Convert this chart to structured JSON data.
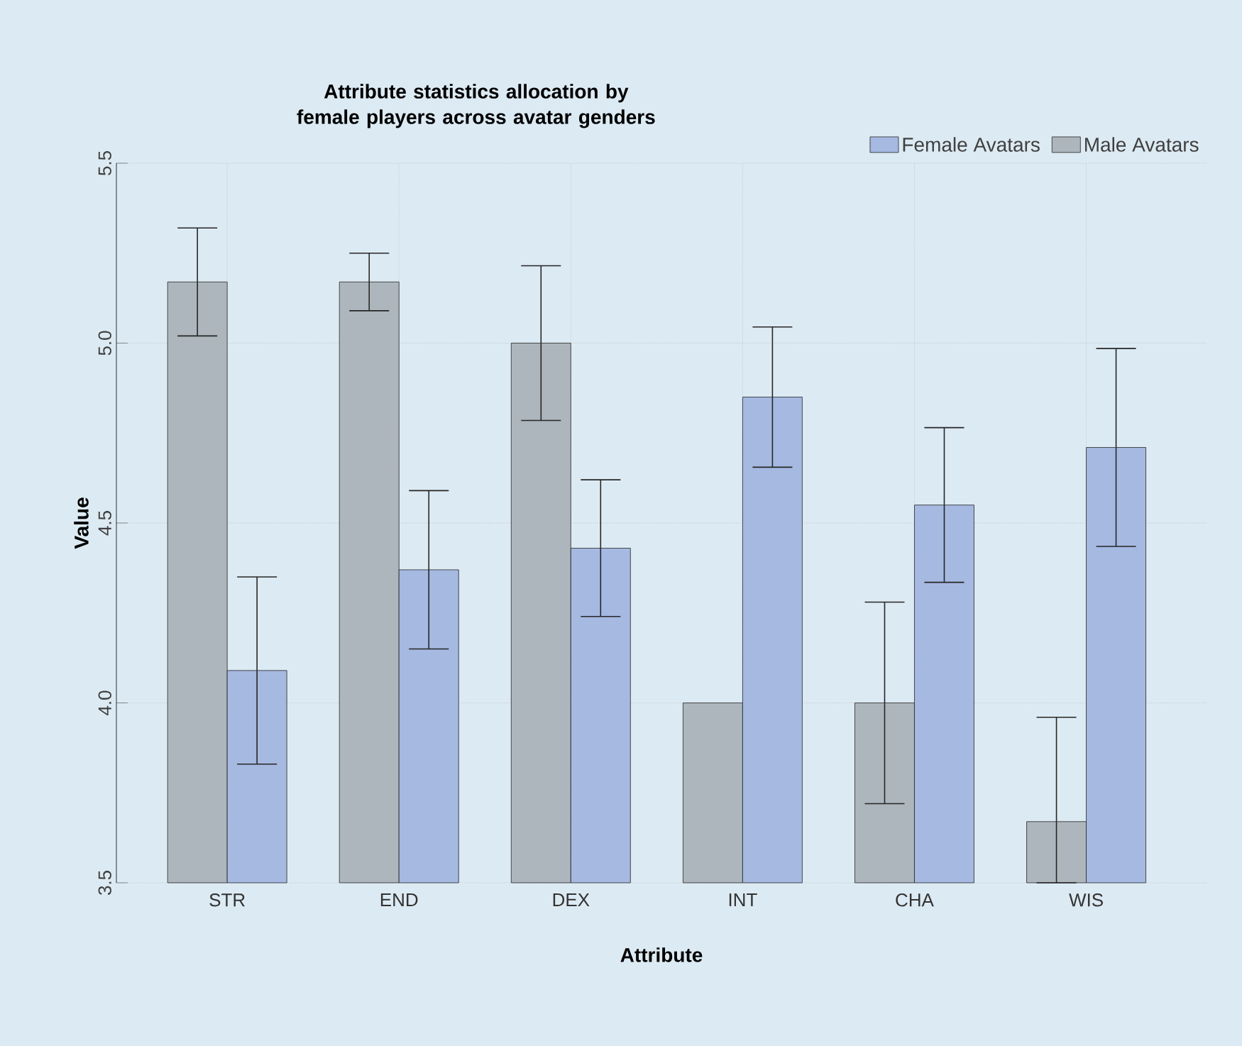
{
  "chart_data": {
    "type": "bar",
    "title": "Attribute statistics allocation by female players across avatar genders",
    "xlabel": "Attribute",
    "ylabel": "Value",
    "categories": [
      "STR",
      "END",
      "DEX",
      "INT",
      "CHA",
      "WIS"
    ],
    "series": [
      {
        "name": "Male Avatars",
        "color": "#adb6bc",
        "values": [
          5.17,
          5.17,
          5.0,
          4.0,
          4.0,
          3.67
        ],
        "errors": [
          0.15,
          0.08,
          0.215,
          null,
          0.28,
          [
            3.5,
            3.96
          ]
        ]
      },
      {
        "name": "Female Avatars",
        "color": "#a5b9e1",
        "values": [
          4.09,
          4.37,
          4.43,
          4.85,
          4.55,
          4.71
        ],
        "errors": [
          0.26,
          0.22,
          0.19,
          0.195,
          0.215,
          0.275
        ]
      }
    ],
    "ylim": [
      3.5,
      5.5
    ],
    "yticks": [
      3.5,
      {
        "value": 4,
        "label": "4.0"
      },
      4.5,
      {
        "value": 5,
        "label": "5.0"
      },
      5.5
    ],
    "grid": true,
    "legend": "top right"
  }
}
